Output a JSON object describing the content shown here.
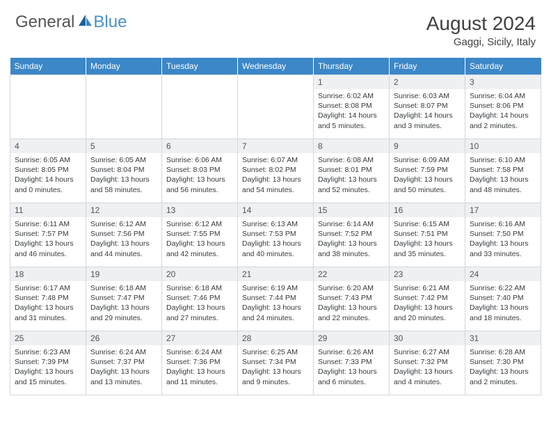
{
  "brand": {
    "general": "General",
    "blue": "Blue"
  },
  "title": "August 2024",
  "location": "Gaggi, Sicily, Italy",
  "day_headers": [
    "Sunday",
    "Monday",
    "Tuesday",
    "Wednesday",
    "Thursday",
    "Friday",
    "Saturday"
  ],
  "colors": {
    "header_bg": "#3b87c8",
    "header_fg": "#ffffff",
    "daynum_bg": "#eef0f2",
    "text": "#353a3e",
    "border": "#d2d7dc",
    "logo_grey": "#555555",
    "logo_blue": "#4a8fc8"
  },
  "weeks": [
    [
      null,
      null,
      null,
      null,
      {
        "n": "1",
        "sunrise": "6:02 AM",
        "sunset": "8:08 PM",
        "daylight": "14 hours and 5 minutes."
      },
      {
        "n": "2",
        "sunrise": "6:03 AM",
        "sunset": "8:07 PM",
        "daylight": "14 hours and 3 minutes."
      },
      {
        "n": "3",
        "sunrise": "6:04 AM",
        "sunset": "8:06 PM",
        "daylight": "14 hours and 2 minutes."
      }
    ],
    [
      {
        "n": "4",
        "sunrise": "6:05 AM",
        "sunset": "8:05 PM",
        "daylight": "14 hours and 0 minutes."
      },
      {
        "n": "5",
        "sunrise": "6:05 AM",
        "sunset": "8:04 PM",
        "daylight": "13 hours and 58 minutes."
      },
      {
        "n": "6",
        "sunrise": "6:06 AM",
        "sunset": "8:03 PM",
        "daylight": "13 hours and 56 minutes."
      },
      {
        "n": "7",
        "sunrise": "6:07 AM",
        "sunset": "8:02 PM",
        "daylight": "13 hours and 54 minutes."
      },
      {
        "n": "8",
        "sunrise": "6:08 AM",
        "sunset": "8:01 PM",
        "daylight": "13 hours and 52 minutes."
      },
      {
        "n": "9",
        "sunrise": "6:09 AM",
        "sunset": "7:59 PM",
        "daylight": "13 hours and 50 minutes."
      },
      {
        "n": "10",
        "sunrise": "6:10 AM",
        "sunset": "7:58 PM",
        "daylight": "13 hours and 48 minutes."
      }
    ],
    [
      {
        "n": "11",
        "sunrise": "6:11 AM",
        "sunset": "7:57 PM",
        "daylight": "13 hours and 46 minutes."
      },
      {
        "n": "12",
        "sunrise": "6:12 AM",
        "sunset": "7:56 PM",
        "daylight": "13 hours and 44 minutes."
      },
      {
        "n": "13",
        "sunrise": "6:12 AM",
        "sunset": "7:55 PM",
        "daylight": "13 hours and 42 minutes."
      },
      {
        "n": "14",
        "sunrise": "6:13 AM",
        "sunset": "7:53 PM",
        "daylight": "13 hours and 40 minutes."
      },
      {
        "n": "15",
        "sunrise": "6:14 AM",
        "sunset": "7:52 PM",
        "daylight": "13 hours and 38 minutes."
      },
      {
        "n": "16",
        "sunrise": "6:15 AM",
        "sunset": "7:51 PM",
        "daylight": "13 hours and 35 minutes."
      },
      {
        "n": "17",
        "sunrise": "6:16 AM",
        "sunset": "7:50 PM",
        "daylight": "13 hours and 33 minutes."
      }
    ],
    [
      {
        "n": "18",
        "sunrise": "6:17 AM",
        "sunset": "7:48 PM",
        "daylight": "13 hours and 31 minutes."
      },
      {
        "n": "19",
        "sunrise": "6:18 AM",
        "sunset": "7:47 PM",
        "daylight": "13 hours and 29 minutes."
      },
      {
        "n": "20",
        "sunrise": "6:18 AM",
        "sunset": "7:46 PM",
        "daylight": "13 hours and 27 minutes."
      },
      {
        "n": "21",
        "sunrise": "6:19 AM",
        "sunset": "7:44 PM",
        "daylight": "13 hours and 24 minutes."
      },
      {
        "n": "22",
        "sunrise": "6:20 AM",
        "sunset": "7:43 PM",
        "daylight": "13 hours and 22 minutes."
      },
      {
        "n": "23",
        "sunrise": "6:21 AM",
        "sunset": "7:42 PM",
        "daylight": "13 hours and 20 minutes."
      },
      {
        "n": "24",
        "sunrise": "6:22 AM",
        "sunset": "7:40 PM",
        "daylight": "13 hours and 18 minutes."
      }
    ],
    [
      {
        "n": "25",
        "sunrise": "6:23 AM",
        "sunset": "7:39 PM",
        "daylight": "13 hours and 15 minutes."
      },
      {
        "n": "26",
        "sunrise": "6:24 AM",
        "sunset": "7:37 PM",
        "daylight": "13 hours and 13 minutes."
      },
      {
        "n": "27",
        "sunrise": "6:24 AM",
        "sunset": "7:36 PM",
        "daylight": "13 hours and 11 minutes."
      },
      {
        "n": "28",
        "sunrise": "6:25 AM",
        "sunset": "7:34 PM",
        "daylight": "13 hours and 9 minutes."
      },
      {
        "n": "29",
        "sunrise": "6:26 AM",
        "sunset": "7:33 PM",
        "daylight": "13 hours and 6 minutes."
      },
      {
        "n": "30",
        "sunrise": "6:27 AM",
        "sunset": "7:32 PM",
        "daylight": "13 hours and 4 minutes."
      },
      {
        "n": "31",
        "sunrise": "6:28 AM",
        "sunset": "7:30 PM",
        "daylight": "13 hours and 2 minutes."
      }
    ]
  ]
}
